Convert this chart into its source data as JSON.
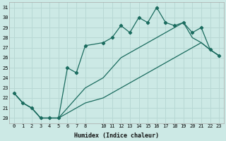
{
  "xlabel": "Humidex (Indice chaleur)",
  "ylabel": "",
  "xlim": [
    -0.5,
    23.5
  ],
  "ylim": [
    19.5,
    31.5
  ],
  "xtick_vals": [
    0,
    1,
    2,
    3,
    4,
    5,
    6,
    7,
    8,
    10,
    11,
    12,
    13,
    14,
    15,
    16,
    17,
    18,
    19,
    20,
    21,
    22,
    23
  ],
  "ytick_vals": [
    20,
    21,
    22,
    23,
    24,
    25,
    26,
    27,
    28,
    29,
    30,
    31
  ],
  "bg_color": "#cce9e5",
  "line_color": "#1a6b5e",
  "grid_color": "#b8d8d4",
  "jagged_x": [
    0,
    1,
    2,
    3,
    4,
    5,
    6,
    7,
    8,
    10,
    11,
    12,
    13,
    14,
    15,
    16,
    17,
    18,
    19,
    20,
    21,
    22,
    23
  ],
  "jagged_y": [
    22.5,
    21.5,
    21.0,
    20.0,
    20.0,
    20.0,
    25.0,
    24.5,
    27.2,
    27.5,
    28.0,
    29.2,
    28.5,
    30.0,
    29.5,
    31.0,
    29.5,
    29.2,
    29.5,
    28.5,
    29.0,
    26.8,
    26.2
  ],
  "upper_x": [
    0,
    1,
    2,
    3,
    4,
    5,
    6,
    7,
    8,
    10,
    11,
    12,
    13,
    14,
    15,
    16,
    17,
    18,
    19,
    20,
    21,
    22,
    23
  ],
  "upper_y": [
    22.5,
    21.5,
    21.0,
    20.0,
    20.0,
    20.0,
    21.0,
    22.0,
    23.0,
    24.0,
    25.0,
    26.0,
    26.5,
    27.0,
    27.5,
    28.0,
    28.5,
    29.0,
    29.5,
    28.0,
    27.5,
    26.8,
    26.2
  ],
  "lower_x": [
    0,
    1,
    2,
    3,
    4,
    5,
    6,
    7,
    8,
    10,
    11,
    12,
    13,
    14,
    15,
    16,
    17,
    18,
    19,
    20,
    21,
    22,
    23
  ],
  "lower_y": [
    22.5,
    21.5,
    21.0,
    20.0,
    20.0,
    20.0,
    20.5,
    21.0,
    21.5,
    22.0,
    22.5,
    23.0,
    23.5,
    24.0,
    24.5,
    25.0,
    25.5,
    26.0,
    26.5,
    27.0,
    27.5,
    26.8,
    26.2
  ]
}
